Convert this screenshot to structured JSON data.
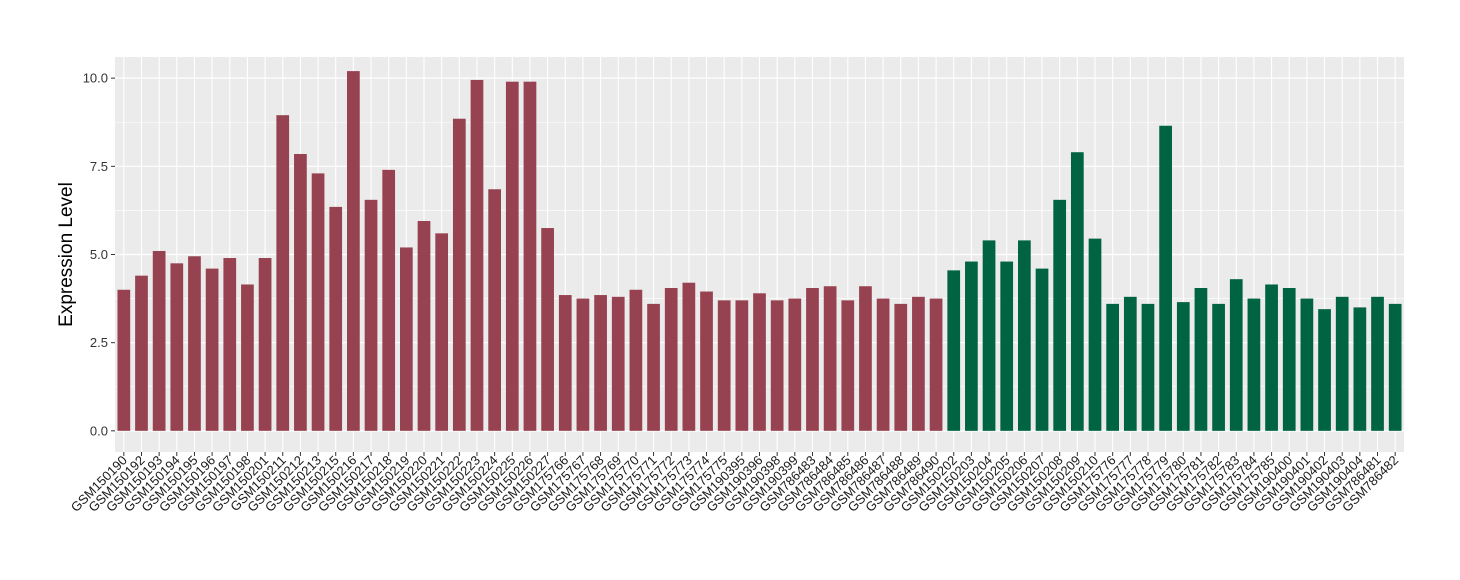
{
  "chart_data": {
    "type": "bar",
    "title": "",
    "xlabel": "",
    "ylabel": "Expression Level",
    "ylim": [
      -0.6,
      10.6
    ],
    "yticks": [
      "0.0",
      "2.5",
      "5.0",
      "7.5",
      "10.0"
    ],
    "grid": true,
    "legend": "none",
    "colors": {
      "group_1": "#974250",
      "group_2": "#006341",
      "panel_bg": "#ebebeb",
      "grid": "#ffffff"
    },
    "categories": [
      "GSM150190",
      "GSM150192",
      "GSM150193",
      "GSM150194",
      "GSM150195",
      "GSM150196",
      "GSM150197",
      "GSM150198",
      "GSM150201",
      "GSM150211",
      "GSM150212",
      "GSM150213",
      "GSM150215",
      "GSM150216",
      "GSM150217",
      "GSM150218",
      "GSM150219",
      "GSM150220",
      "GSM150221",
      "GSM150222",
      "GSM150223",
      "GSM150224",
      "GSM150225",
      "GSM150226",
      "GSM150227",
      "GSM175766",
      "GSM175767",
      "GSM175768",
      "GSM175769",
      "GSM175770",
      "GSM175771",
      "GSM175772",
      "GSM175773",
      "GSM175774",
      "GSM175775",
      "GSM190395",
      "GSM190396",
      "GSM190398",
      "GSM190399",
      "GSM786483",
      "GSM786484",
      "GSM786485",
      "GSM786486",
      "GSM786487",
      "GSM786488",
      "GSM786489",
      "GSM786490",
      "GSM150202",
      "GSM150203",
      "GSM150204",
      "GSM150205",
      "GSM150206",
      "GSM150207",
      "GSM150208",
      "GSM150209",
      "GSM150210",
      "GSM175776",
      "GSM175777",
      "GSM175778",
      "GSM175779",
      "GSM175780",
      "GSM175781",
      "GSM175782",
      "GSM175783",
      "GSM175784",
      "GSM175785",
      "GSM190400",
      "GSM190401",
      "GSM190402",
      "GSM190403",
      "GSM190404",
      "GSM786481",
      "GSM786482"
    ],
    "values": [
      4.0,
      4.4,
      5.1,
      4.75,
      4.95,
      4.6,
      4.9,
      4.15,
      4.9,
      8.95,
      7.85,
      7.3,
      6.35,
      10.2,
      6.55,
      7.4,
      5.2,
      5.95,
      5.6,
      8.85,
      9.95,
      6.85,
      9.9,
      9.9,
      5.75,
      3.85,
      3.75,
      3.85,
      3.8,
      4.0,
      3.6,
      4.05,
      4.2,
      3.95,
      3.7,
      3.7,
      3.9,
      3.7,
      3.75,
      4.05,
      4.1,
      3.7,
      4.1,
      3.75,
      3.6,
      3.8,
      3.75,
      4.55,
      4.8,
      5.4,
      4.8,
      5.4,
      4.6,
      6.55,
      7.9,
      5.45,
      3.6,
      3.8,
      3.6,
      8.65,
      3.65,
      4.05,
      3.6,
      4.3,
      3.75,
      4.15,
      4.05,
      3.75,
      3.45,
      3.8,
      3.5,
      3.8,
      3.6
    ],
    "groups": [
      1,
      1,
      1,
      1,
      1,
      1,
      1,
      1,
      1,
      1,
      1,
      1,
      1,
      1,
      1,
      1,
      1,
      1,
      1,
      1,
      1,
      1,
      1,
      1,
      1,
      1,
      1,
      1,
      1,
      1,
      1,
      1,
      1,
      1,
      1,
      1,
      1,
      1,
      1,
      1,
      1,
      1,
      1,
      1,
      1,
      1,
      1,
      2,
      2,
      2,
      2,
      2,
      2,
      2,
      2,
      2,
      2,
      2,
      2,
      2,
      2,
      2,
      2,
      2,
      2,
      2,
      2,
      2,
      2,
      2,
      2,
      2,
      2
    ]
  }
}
